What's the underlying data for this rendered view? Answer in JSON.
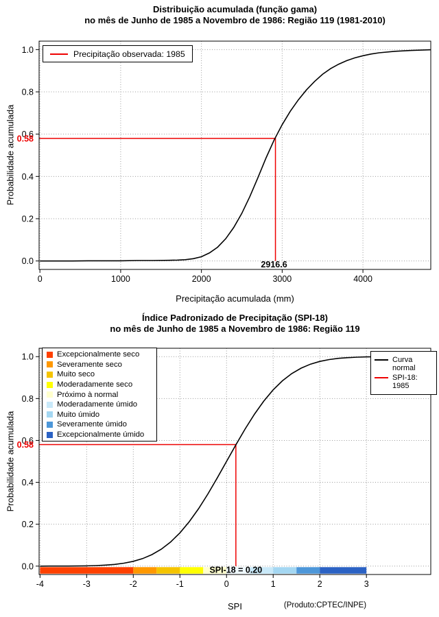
{
  "colors": {
    "curve": "#000000",
    "marker": "#ee0000",
    "grid": "#999999",
    "background": "#ffffff"
  },
  "chart_data": [
    {
      "type": "line",
      "title1": "Distribuição acumulada (função gama)",
      "title2": "no mês de Junho de 1985 a Novembro de 1986: Região 119 (1981-2010)",
      "xlabel": "Precipitação acumulada (mm)",
      "ylabel": "Probabilidade acumulada",
      "legend": {
        "label": "Precipitação observada: 1985",
        "color": "#ee0000"
      },
      "grid": true,
      "xlim": [
        -10,
        4840
      ],
      "ylim": [
        -0.04,
        1.04
      ],
      "xticks": [
        0,
        1000,
        2000,
        3000,
        4000
      ],
      "yticks": [
        0,
        0.2,
        0.4,
        0.6,
        0.8,
        1
      ],
      "marker": {
        "x": 2916.6,
        "y": 0.58,
        "x_label": "2916.6",
        "y_label": "0.58"
      },
      "curve": {
        "name": "Distribuição gama acumulada",
        "x": [
          0,
          200,
          400,
          600,
          800,
          1000,
          1200,
          1400,
          1600,
          1700,
          1800,
          1900,
          2000,
          2100,
          2200,
          2300,
          2400,
          2500,
          2600,
          2700,
          2800,
          2900,
          3000,
          3100,
          3200,
          3300,
          3400,
          3500,
          3600,
          3700,
          3800,
          3900,
          4000,
          4100,
          4200,
          4400,
          4600,
          4840
        ],
        "y": [
          0.0,
          0.0,
          0.0,
          0.001,
          0.001,
          0.001,
          0.002,
          0.002,
          0.003,
          0.004,
          0.006,
          0.011,
          0.02,
          0.038,
          0.065,
          0.105,
          0.158,
          0.225,
          0.305,
          0.395,
          0.487,
          0.572,
          0.645,
          0.708,
          0.762,
          0.809,
          0.849,
          0.883,
          0.91,
          0.931,
          0.948,
          0.961,
          0.971,
          0.979,
          0.985,
          0.992,
          0.996,
          0.999
        ]
      }
    },
    {
      "type": "line",
      "title1": "Índice Padronizado de Precipitação (SPI-18)",
      "title2": "no mês de Junho de 1985 a Novembro de 1986: Região 119",
      "xlabel": "SPI",
      "ylabel": "Probabilidade acumulada",
      "credit": "(Produto:CPTEC/INPE)",
      "grid": true,
      "xlim": [
        -4.02,
        4.38
      ],
      "ylim": [
        -0.04,
        1.04
      ],
      "xticks": [
        -4,
        -3,
        -2,
        -1,
        0,
        1,
        2,
        3
      ],
      "yticks": [
        0,
        0.2,
        0.4,
        0.6,
        0.8,
        1
      ],
      "marker": {
        "x": 0.2,
        "y": 0.58,
        "x_label": "SPI-18 = 0.20",
        "y_label": "0.58"
      },
      "legend_right": [
        {
          "label": "Curva normal",
          "color": "#000000"
        },
        {
          "label": "SPI-18: 1985",
          "color": "#ee0000"
        }
      ],
      "categories": [
        {
          "label": "Excepcionalmente seco",
          "color": "#ff4000"
        },
        {
          "label": "Severamente seco",
          "color": "#ff9800"
        },
        {
          "label": "Muito seco",
          "color": "#f5c400"
        },
        {
          "label": "Moderadamente seco",
          "color": "#ffff00"
        },
        {
          "label": "Próximo à normal",
          "color": "#ffffcd"
        },
        {
          "label": "Moderadamente úmido",
          "color": "#c9e9f9"
        },
        {
          "label": "Muito úmido",
          "color": "#a4d7f2"
        },
        {
          "label": "Severamente úmido",
          "color": "#4d97d9"
        },
        {
          "label": "Excepcionalmente úmido",
          "color": "#2b62c4"
        }
      ],
      "colorbar": [
        {
          "from": -4,
          "to": -2,
          "color": "#ff4000"
        },
        {
          "from": -2,
          "to": -1.5,
          "color": "#ff9800"
        },
        {
          "from": -1.5,
          "to": -1,
          "color": "#f5c400"
        },
        {
          "from": -1,
          "to": -0.5,
          "color": "#ffff00"
        },
        {
          "from": -0.5,
          "to": 0,
          "color": "#ffffcd"
        },
        {
          "from": 0,
          "to": 0.5,
          "color": "#eef8fe"
        },
        {
          "from": 0.5,
          "to": 1,
          "color": "#c9e9f9"
        },
        {
          "from": 1,
          "to": 1.5,
          "color": "#a4d7f2"
        },
        {
          "from": 1.5,
          "to": 2,
          "color": "#4d97d9"
        },
        {
          "from": 2,
          "to": 3,
          "color": "#2b62c4"
        }
      ],
      "curve": {
        "name": "Curva normal acumulada",
        "x": [
          -4,
          -3.8,
          -3.6,
          -3.4,
          -3.2,
          -3,
          -2.8,
          -2.6,
          -2.4,
          -2.2,
          -2,
          -1.8,
          -1.6,
          -1.4,
          -1.2,
          -1,
          -0.8,
          -0.6,
          -0.4,
          -0.2,
          0,
          0.2,
          0.4,
          0.6,
          0.8,
          1,
          1.2,
          1.4,
          1.6,
          1.8,
          2,
          2.2,
          2.4,
          2.6,
          2.8,
          3,
          3.2,
          3.4,
          3.6,
          3.8,
          4,
          4.2,
          4.4
        ],
        "y": [
          0.0,
          0.0001,
          0.0002,
          0.0003,
          0.0007,
          0.0013,
          0.0026,
          0.0047,
          0.0082,
          0.0139,
          0.0228,
          0.0359,
          0.0548,
          0.0808,
          0.1151,
          0.1587,
          0.2119,
          0.2743,
          0.3446,
          0.4207,
          0.5,
          0.5793,
          0.6554,
          0.7257,
          0.7881,
          0.8413,
          0.8849,
          0.9192,
          0.9452,
          0.9641,
          0.9772,
          0.9861,
          0.9918,
          0.9953,
          0.9974,
          0.9987,
          0.9993,
          0.9997,
          0.9998,
          0.9999,
          1.0,
          1.0,
          1.0
        ]
      }
    }
  ]
}
